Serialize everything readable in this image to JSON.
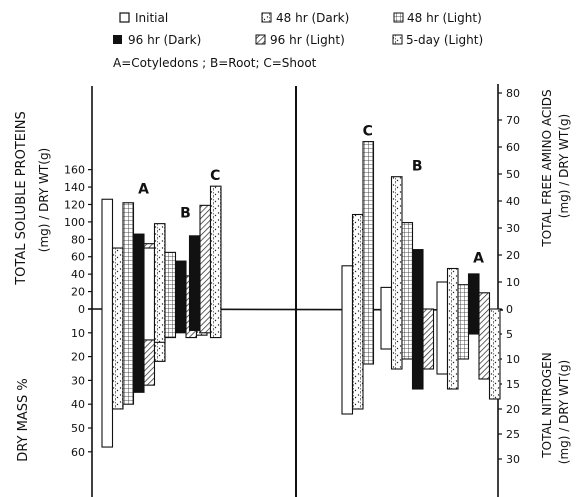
{
  "legend": {
    "row1": [
      {
        "label": "Initial",
        "pattern": "open"
      },
      {
        "label": "48 hr (Dark)",
        "pattern": "dotted-grid"
      },
      {
        "label": "48 hr (Light)",
        "pattern": "grid"
      }
    ],
    "row2": [
      {
        "label": "96 hr (Dark)",
        "pattern": "solid"
      },
      {
        "label": "96 hr (Light)",
        "pattern": "hatched"
      },
      {
        "label": "5-day (Light)",
        "pattern": "dotted-grid"
      }
    ],
    "key": "A=Cotyledons ; B=Root; C=Shoot"
  },
  "axes": {
    "left_top_label": "TOTAL SOLUBLE PROTEINS",
    "left_top_units": "(mg) / DRY WT(g)",
    "left_bottom_label": "DRY MASS %",
    "right_top_label": "TOTAL FREE AMINO ACIDS",
    "right_top_units": "(mg) / DRY WT(g)",
    "right_bottom_label": "TOTAL NITROGEN",
    "right_bottom_units": "(mg) / DRY WT(g)",
    "left_top_ticks": [
      "160",
      "140",
      "120",
      "100",
      "80",
      "60",
      "40",
      "20",
      "0"
    ],
    "left_bottom_ticks": [
      "10",
      "20",
      "30",
      "40",
      "50",
      "60"
    ],
    "right_top_ticks": [
      "80",
      "70",
      "60",
      "50",
      "40",
      "30",
      "20",
      "10",
      "0"
    ],
    "right_bottom_ticks": [
      "5",
      "10",
      "15",
      "20",
      "25",
      "30"
    ]
  },
  "chart_data": {
    "type": "bar",
    "series_order": [
      "Initial",
      "48 hr (Dark)",
      "48 hr (Light)",
      "96 hr (Dark)",
      "96 hr (Light)",
      "5-day (Light)"
    ],
    "left_panel": {
      "top_metric": "Total soluble proteins (mg/dry wt g)",
      "bottom_metric": "Dry mass %",
      "top_ylim": [
        0,
        160
      ],
      "bottom_ylim": [
        0,
        60
      ],
      "groups": [
        {
          "label": "A",
          "top": [
            126,
            70,
            122,
            86,
            75,
            55
          ],
          "bottom": [
            58,
            42,
            40,
            35,
            32,
            22
          ]
        },
        {
          "label": "B",
          "top": [
            70,
            98,
            65,
            55,
            38,
            80
          ],
          "bottom": [
            13,
            14,
            12,
            10,
            12,
            11
          ]
        },
        {
          "label": "C",
          "top": [
            0,
            0,
            0,
            84,
            119,
            141
          ],
          "bottom": [
            0,
            0,
            0,
            9,
            10,
            12
          ]
        }
      ]
    },
    "right_panel": {
      "top_metric": "Total free amino acids (mg/dry wt g)",
      "bottom_metric": "Total nitrogen (mg/dry wt g)",
      "top_ylim": [
        0,
        80
      ],
      "bottom_ylim": [
        0,
        30
      ],
      "groups": [
        {
          "label": "C",
          "top": [
            16,
            35,
            62,
            0,
            0,
            0
          ],
          "bottom": [
            21,
            20,
            11,
            0,
            0,
            0
          ]
        },
        {
          "label": "B",
          "top": [
            8,
            49,
            32,
            22,
            0,
            0
          ],
          "bottom": [
            8,
            12,
            10,
            16,
            12,
            0
          ]
        },
        {
          "label": "A",
          "top": [
            10,
            15,
            9,
            13,
            6,
            0
          ],
          "bottom": [
            13,
            16,
            10,
            5,
            14,
            18
          ]
        }
      ]
    }
  }
}
